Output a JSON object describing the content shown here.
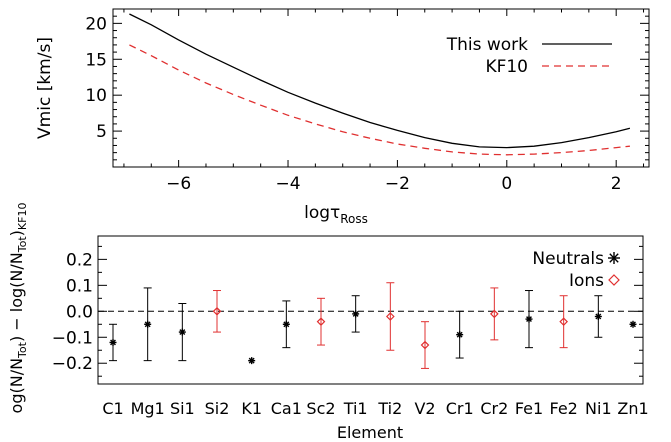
{
  "chart_data": [
    {
      "type": "line",
      "xlabel_main": "logτ",
      "xlabel_sub": "Ross",
      "ylabel": "Vmic  [km/s]",
      "xlim": [
        -7.2,
        2.6
      ],
      "ylim": [
        0,
        22
      ],
      "xticks": [
        -6,
        -4,
        -2,
        0,
        2
      ],
      "xtick_labels": [
        "−6",
        "−4",
        "−2",
        "0",
        "2"
      ],
      "yticks": [
        5,
        10,
        15,
        20
      ],
      "ytick_labels": [
        "5",
        "10",
        "15",
        "20"
      ],
      "legend_position": "top-right",
      "series": [
        {
          "name": "This work",
          "color": "#000000",
          "dash": "solid",
          "x": [
            -6.9,
            -6.5,
            -6,
            -5.5,
            -5,
            -4.5,
            -4,
            -3.5,
            -3,
            -2.5,
            -2,
            -1.5,
            -1,
            -0.5,
            0,
            0.5,
            1,
            1.5,
            2,
            2.25
          ],
          "y": [
            21.3,
            19.8,
            17.7,
            15.7,
            13.9,
            12.1,
            10.4,
            8.9,
            7.5,
            6.2,
            5.1,
            4.1,
            3.3,
            2.8,
            2.7,
            2.9,
            3.4,
            4.1,
            4.9,
            5.4
          ]
        },
        {
          "name": "KF10",
          "color": "#e03030",
          "dash": "dashed",
          "x": [
            -6.9,
            -6.5,
            -6,
            -5.5,
            -5,
            -4.5,
            -4,
            -3.5,
            -3,
            -2.5,
            -2,
            -1.5,
            -1,
            -0.5,
            0,
            0.5,
            1,
            1.5,
            2,
            2.25
          ],
          "y": [
            17.0,
            15.5,
            13.5,
            11.7,
            10.1,
            8.6,
            7.2,
            6.0,
            4.9,
            4.0,
            3.2,
            2.6,
            2.1,
            1.8,
            1.7,
            1.8,
            2.0,
            2.3,
            2.7,
            2.9
          ]
        }
      ]
    },
    {
      "type": "scatter",
      "xlabel": "Element",
      "ylabel_parts": [
        "og(N/N",
        "Tot",
        ")  −  log(N/N",
        "Tot",
        ")",
        "KF10"
      ],
      "ylim": [
        -0.28,
        0.29
      ],
      "yticks": [
        -0.2,
        -0.1,
        0.0,
        0.1,
        0.2
      ],
      "ytick_labels": [
        "−0.2",
        "−0.1",
        "0.0",
        "0.1",
        "0.2"
      ],
      "reference_line": 0.0,
      "legend_position": "top-right",
      "legend": [
        {
          "name": "Neutrals",
          "color": "#000000",
          "marker": "asterisk"
        },
        {
          "name": "Ions",
          "color": "#e03030",
          "marker": "diamond"
        }
      ],
      "categories": [
        "C1",
        "Mg1",
        "Si1",
        "Si2",
        "K1",
        "Ca1",
        "Sc2",
        "Ti1",
        "Ti2",
        "V2",
        "Cr1",
        "Cr2",
        "Fe1",
        "Fe2",
        "Ni1",
        "Zn1"
      ],
      "points": [
        {
          "element": "C1",
          "type": "neutral",
          "value": -0.12,
          "err_low": 0.07,
          "err_high": 0.07
        },
        {
          "element": "Mg1",
          "type": "neutral",
          "value": -0.05,
          "err_low": 0.14,
          "err_high": 0.14
        },
        {
          "element": "Si1",
          "type": "neutral",
          "value": -0.08,
          "err_low": 0.11,
          "err_high": 0.11
        },
        {
          "element": "Si2",
          "type": "ion",
          "value": 0.0,
          "err_low": 0.08,
          "err_high": 0.08
        },
        {
          "element": "K1",
          "type": "neutral",
          "value": -0.19,
          "err_low": 0.0,
          "err_high": 0.0
        },
        {
          "element": "Ca1",
          "type": "neutral",
          "value": -0.05,
          "err_low": 0.09,
          "err_high": 0.09
        },
        {
          "element": "Sc2",
          "type": "ion",
          "value": -0.04,
          "err_low": 0.09,
          "err_high": 0.09
        },
        {
          "element": "Ti1",
          "type": "neutral",
          "value": -0.01,
          "err_low": 0.07,
          "err_high": 0.07
        },
        {
          "element": "Ti2",
          "type": "ion",
          "value": -0.02,
          "err_low": 0.13,
          "err_high": 0.13
        },
        {
          "element": "V2",
          "type": "ion",
          "value": -0.13,
          "err_low": 0.09,
          "err_high": 0.09
        },
        {
          "element": "Cr1",
          "type": "neutral",
          "value": -0.09,
          "err_low": 0.09,
          "err_high": 0.09
        },
        {
          "element": "Cr2",
          "type": "ion",
          "value": -0.01,
          "err_low": 0.1,
          "err_high": 0.1
        },
        {
          "element": "Fe1",
          "type": "neutral",
          "value": -0.03,
          "err_low": 0.11,
          "err_high": 0.11
        },
        {
          "element": "Fe2",
          "type": "ion",
          "value": -0.04,
          "err_low": 0.1,
          "err_high": 0.1
        },
        {
          "element": "Ni1",
          "type": "neutral",
          "value": -0.02,
          "err_low": 0.08,
          "err_high": 0.08
        },
        {
          "element": "Zn1",
          "type": "neutral",
          "value": -0.05,
          "err_low": 0.0,
          "err_high": 0.0
        }
      ]
    }
  ]
}
